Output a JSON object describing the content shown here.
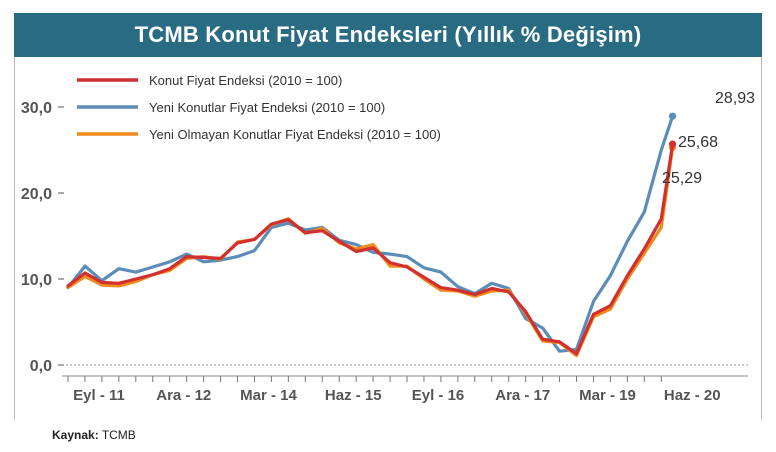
{
  "header": {
    "title": "TCMB Konut Fiyat Endeksleri (Yıllık % Değişim)"
  },
  "source": {
    "label": "Kaynak:",
    "value": "TCMB"
  },
  "chart_data": {
    "type": "line",
    "title": "TCMB Konut Fiyat Endeksleri (Yıllık % Değişim)",
    "xlabel": "",
    "ylabel": "",
    "ylim": [
      0,
      30
    ],
    "yticks": [
      0,
      10,
      20,
      30
    ],
    "ytick_labels": [
      "0,0",
      "10,0",
      "20,0",
      "30,0"
    ],
    "x_start": "2011-09",
    "x_end": "2020-08",
    "xtick_positions": [
      "2011-09",
      "2012-12",
      "2014-03",
      "2015-06",
      "2016-09",
      "2017-12",
      "2019-03",
      "2020-06"
    ],
    "xtick_labels": [
      "Eyl - 11",
      "Ara - 12",
      "Mar - 14",
      "Haz - 15",
      "Eyl - 16",
      "Ara - 17",
      "Mar - 19",
      "Haz - 20"
    ],
    "grid": false,
    "legend_position": "top-left",
    "series": [
      {
        "name": "Konut Fiyat Endeksi (2010 = 100)",
        "color": "#d22f2f",
        "dates": [
          "2011-09",
          "2011-12",
          "2012-03",
          "2012-06",
          "2012-09",
          "2012-12",
          "2013-03",
          "2013-06",
          "2013-09",
          "2013-12",
          "2014-03",
          "2014-06",
          "2014-09",
          "2014-12",
          "2015-03",
          "2015-06",
          "2015-09",
          "2015-12",
          "2016-03",
          "2016-06",
          "2016-09",
          "2016-12",
          "2017-03",
          "2017-06",
          "2017-09",
          "2017-12",
          "2018-03",
          "2018-06",
          "2018-09",
          "2018-12",
          "2019-03",
          "2019-06",
          "2019-09",
          "2019-12",
          "2020-03",
          "2020-06",
          "2020-08"
        ],
        "values": [
          9.2,
          10.7,
          9.6,
          9.5,
          10.0,
          10.5,
          11.2,
          12.6,
          12.5,
          12.4,
          14.2,
          14.6,
          16.4,
          16.9,
          15.4,
          15.6,
          14.4,
          13.2,
          13.6,
          11.9,
          11.4,
          10.2,
          9.0,
          8.7,
          8.2,
          8.9,
          8.5,
          6.2,
          3.0,
          2.7,
          1.3,
          5.9,
          6.9,
          10.4,
          13.5,
          17.0,
          25.68
        ]
      },
      {
        "name": "Yeni Konutlar Fiyat Endeksi (2010 = 100)",
        "color": "#5b8db8",
        "dates": [
          "2011-09",
          "2011-12",
          "2012-03",
          "2012-06",
          "2012-09",
          "2012-12",
          "2013-03",
          "2013-06",
          "2013-09",
          "2013-12",
          "2014-03",
          "2014-06",
          "2014-09",
          "2014-12",
          "2015-03",
          "2015-06",
          "2015-09",
          "2015-12",
          "2016-03",
          "2016-06",
          "2016-09",
          "2016-12",
          "2017-03",
          "2017-06",
          "2017-09",
          "2017-12",
          "2018-03",
          "2018-06",
          "2018-09",
          "2018-12",
          "2019-03",
          "2019-06",
          "2019-09",
          "2019-12",
          "2020-03",
          "2020-06",
          "2020-08"
        ],
        "values": [
          9.0,
          11.5,
          9.8,
          11.2,
          10.8,
          11.4,
          12.0,
          12.9,
          12.0,
          12.2,
          12.6,
          13.3,
          16.0,
          16.5,
          15.7,
          16.0,
          14.5,
          14.0,
          13.1,
          12.9,
          12.6,
          11.3,
          10.8,
          9.1,
          8.3,
          9.5,
          8.9,
          5.4,
          4.3,
          1.6,
          1.8,
          7.4,
          10.4,
          14.4,
          17.8,
          25.0,
          28.93
        ]
      },
      {
        "name": "Yeni Olmayan Konutlar Fiyat Endeksi (2010 = 100)",
        "color": "#f08a1c",
        "dates": [
          "2011-09",
          "2011-12",
          "2012-03",
          "2012-06",
          "2012-09",
          "2012-12",
          "2013-03",
          "2013-06",
          "2013-09",
          "2013-12",
          "2014-03",
          "2014-06",
          "2014-09",
          "2014-12",
          "2015-03",
          "2015-06",
          "2015-09",
          "2015-12",
          "2016-03",
          "2016-06",
          "2016-09",
          "2016-12",
          "2017-03",
          "2017-06",
          "2017-09",
          "2017-12",
          "2018-03",
          "2018-06",
          "2018-09",
          "2018-12",
          "2019-03",
          "2019-06",
          "2019-09",
          "2019-12",
          "2020-03",
          "2020-06",
          "2020-08"
        ],
        "values": [
          9.0,
          10.3,
          9.3,
          9.2,
          9.7,
          10.5,
          11.0,
          12.4,
          12.6,
          12.3,
          14.3,
          14.6,
          16.3,
          17.0,
          15.3,
          15.9,
          14.2,
          13.5,
          14.0,
          11.5,
          11.5,
          10.0,
          8.7,
          8.6,
          8.0,
          8.6,
          8.7,
          6.0,
          2.8,
          2.6,
          1.1,
          5.6,
          6.5,
          10.0,
          13.0,
          16.0,
          25.29
        ]
      }
    ],
    "annotations": [
      "28,93",
      "25,68",
      "25,29"
    ]
  }
}
